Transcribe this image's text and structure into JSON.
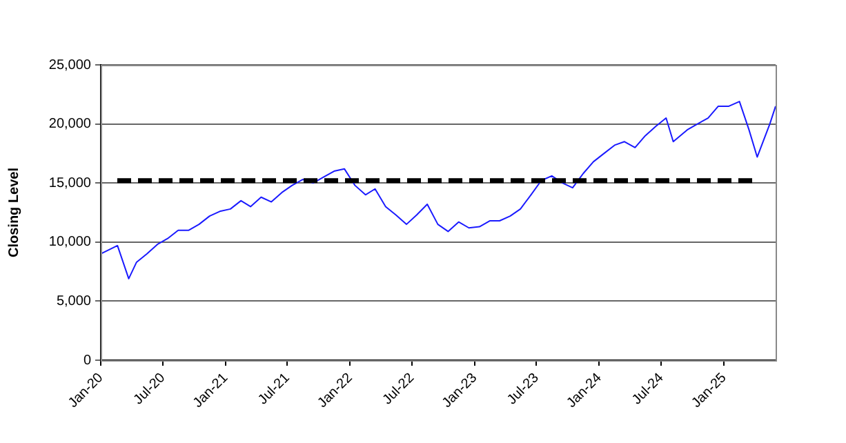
{
  "chart_data": {
    "type": "line",
    "ylabel": "Closing Level",
    "x": [
      "2020-01-01",
      "2020-02-19",
      "2020-03-23",
      "2020-04-15",
      "2020-05-15",
      "2020-06-15",
      "2020-07-15",
      "2020-08-15",
      "2020-09-15",
      "2020-10-15",
      "2020-11-15",
      "2020-12-15",
      "2021-01-15",
      "2021-02-15",
      "2021-03-15",
      "2021-04-15",
      "2021-05-15",
      "2021-06-15",
      "2021-07-15",
      "2021-08-15",
      "2021-09-15",
      "2021-10-15",
      "2021-11-15",
      "2021-12-15",
      "2022-01-15",
      "2022-02-15",
      "2022-03-15",
      "2022-04-15",
      "2022-05-15",
      "2022-06-15",
      "2022-07-15",
      "2022-08-15",
      "2022-09-15",
      "2022-10-15",
      "2022-11-15",
      "2022-12-15",
      "2023-01-15",
      "2023-02-15",
      "2023-03-15",
      "2023-04-15",
      "2023-05-15",
      "2023-06-15",
      "2023-07-15",
      "2023-08-15",
      "2023-09-15",
      "2023-10-15",
      "2023-11-15",
      "2023-12-15",
      "2024-01-15",
      "2024-02-15",
      "2024-03-15",
      "2024-04-15",
      "2024-05-15",
      "2024-06-15",
      "2024-07-15",
      "2024-08-05",
      "2024-09-15",
      "2024-10-15",
      "2024-11-15",
      "2024-12-15",
      "2025-01-15",
      "2025-02-15",
      "2025-03-15",
      "2025-04-08",
      "2025-05-15",
      "2025-06-01"
    ],
    "series": [
      {
        "color": "#1a1aff",
        "values": [
          9000,
          9700,
          6900,
          8300,
          9000,
          9800,
          10300,
          11000,
          11000,
          11500,
          12200,
          12600,
          12800,
          13500,
          13000,
          13800,
          13400,
          14200,
          14800,
          15300,
          15000,
          15500,
          16000,
          16200,
          14800,
          14000,
          14500,
          13000,
          12300,
          11500,
          12300,
          13200,
          11500,
          10900,
          11700,
          11200,
          11300,
          11800,
          11800,
          12200,
          12800,
          14000,
          15200,
          15600,
          15000,
          14600,
          15800,
          16800,
          17500,
          18200,
          18500,
          18000,
          19000,
          19800,
          20500,
          18500,
          19500,
          20000,
          20500,
          21500,
          21500,
          21900,
          19500,
          17200,
          20000,
          21500
        ]
      }
    ],
    "xlim": [
      "2020-01-01",
      "2025-06-01"
    ],
    "xticks": [
      {
        "value": "2020-01-01",
        "label": "Jan-20"
      },
      {
        "value": "2020-07-01",
        "label": "Jul-20"
      },
      {
        "value": "2021-01-01",
        "label": "Jan-21"
      },
      {
        "value": "2021-07-01",
        "label": "Jul-21"
      },
      {
        "value": "2022-01-01",
        "label": "Jan-22"
      },
      {
        "value": "2022-07-01",
        "label": "Jul-22"
      },
      {
        "value": "2023-01-01",
        "label": "Jan-23"
      },
      {
        "value": "2023-07-01",
        "label": "Jul-23"
      },
      {
        "value": "2024-01-01",
        "label": "Jan-24"
      },
      {
        "value": "2024-07-01",
        "label": "Jul-24"
      },
      {
        "value": "2025-01-01",
        "label": "Jan-25"
      }
    ],
    "ylim": [
      0,
      25000
    ],
    "yticks": [
      {
        "value": 0,
        "label": "0"
      },
      {
        "value": 5000,
        "label": "5,000"
      },
      {
        "value": 10000,
        "label": "10,000"
      },
      {
        "value": 15000,
        "label": "15,000"
      },
      {
        "value": 20000,
        "label": "20,000"
      },
      {
        "value": 25000,
        "label": "25,000"
      }
    ],
    "ref_lines": [
      {
        "axis": "y",
        "value": 15200,
        "color": "#000000",
        "line_style": "dashed"
      }
    ],
    "grid": "y",
    "legend": false,
    "marker": "none",
    "line_style": "solid"
  }
}
